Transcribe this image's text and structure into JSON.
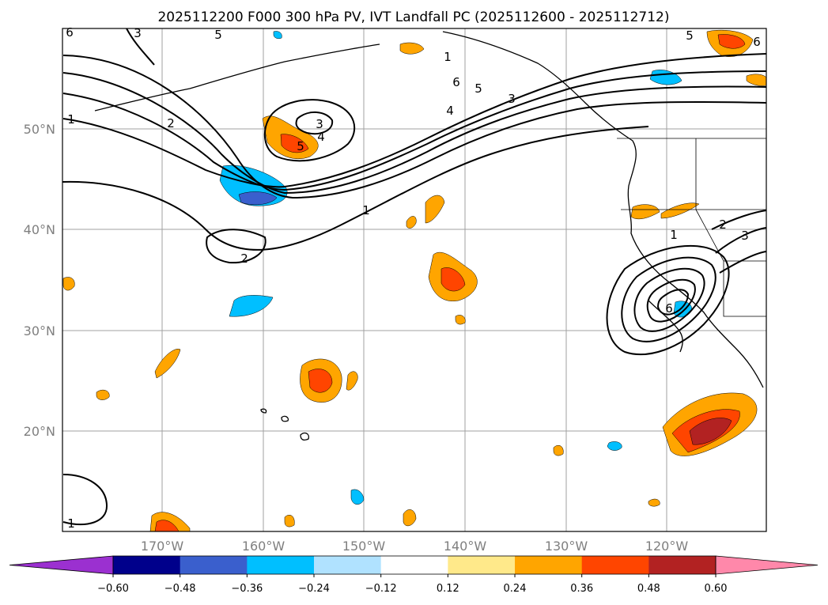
{
  "title": "2025112200 F000 300 hPa PV, IVT Landfall PC (2025112600 - 2025112712)",
  "lat_labels": [
    "50°N",
    "40°N",
    "30°N",
    "20°N"
  ],
  "lon_labels": [
    "170°W",
    "160°W",
    "150°W",
    "140°W",
    "130°W",
    "120°W"
  ],
  "contour_labels": [
    "1",
    "2",
    "3",
    "4",
    "5",
    "6"
  ],
  "colorbar": {
    "ticks": [
      "−0.60",
      "−0.48",
      "−0.36",
      "−0.24",
      "−0.12",
      "0.12",
      "0.24",
      "0.36",
      "0.48",
      "0.60"
    ],
    "colors": [
      "#9b30d0",
      "#00008b",
      "#3a5fcd",
      "#00bfff",
      "#b0e2ff",
      "#ffffff",
      "#ffe98a",
      "#ffa500",
      "#ff4500",
      "#b22222",
      "#ff88aa"
    ]
  }
}
